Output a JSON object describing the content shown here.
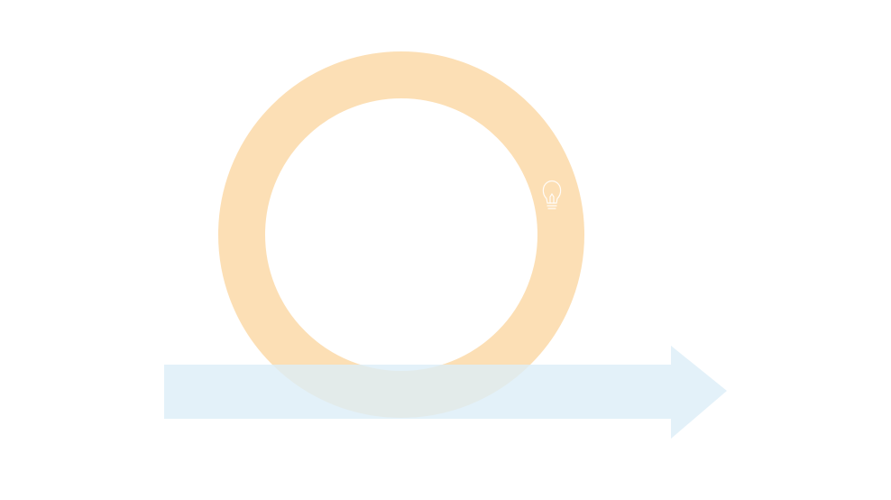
{
  "diagram": {
    "shapes": [
      {
        "kind": "ring",
        "color": "#FCD9A8"
      },
      {
        "kind": "arrow",
        "direction": "right",
        "color": "#DCEEF8"
      }
    ],
    "icons": [
      {
        "name": "lightbulb-icon",
        "color": "#FFFFFF"
      }
    ]
  }
}
